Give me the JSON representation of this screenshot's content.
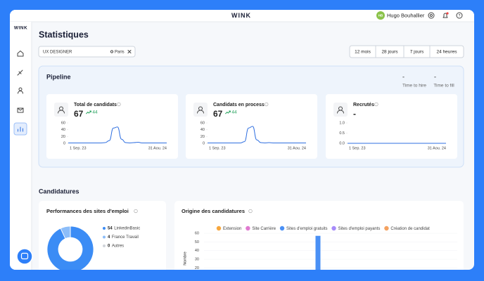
{
  "header": {
    "logo": "WINK",
    "user": {
      "initials": "HB",
      "name": "Hugo Bouhallier"
    }
  },
  "sidebar": {
    "logo": "WINK"
  },
  "page_title": "Statistiques",
  "search": {
    "query": "UX DESIGNER",
    "location": "Paris"
  },
  "time_filters": [
    "12 mois",
    "28 jours",
    "7 jours",
    "24 heures"
  ],
  "pipeline": {
    "title": "Pipeline",
    "metrics": [
      {
        "value": "-",
        "label": "Time to hire"
      },
      {
        "value": "-",
        "label": "Time to fill"
      }
    ],
    "cards": [
      {
        "title": "Total de candidats",
        "value": 67,
        "delta": 44,
        "chart": {
          "type": "line",
          "color": "#2f6fe0",
          "values": [
            1,
            1,
            1,
            1,
            1,
            1,
            1,
            1,
            1,
            2,
            8,
            45,
            48,
            12,
            2,
            1,
            2,
            3,
            1,
            1,
            1,
            1,
            1,
            1,
            1
          ],
          "ylim": [
            0,
            60
          ],
          "yticks": [
            0,
            20,
            40,
            60
          ],
          "x_labels": [
            "1 Sep. 23",
            "31 Aou. 24"
          ]
        }
      },
      {
        "title": "Candidats en process",
        "value": 67,
        "delta": 44,
        "chart": {
          "type": "line",
          "color": "#2f6fe0",
          "values": [
            1,
            1,
            1,
            1,
            1,
            1,
            1,
            1,
            1,
            5,
            45,
            50,
            10,
            2,
            1,
            2,
            1,
            1,
            1,
            1,
            1,
            1,
            1,
            1,
            1
          ],
          "ylim": [
            0,
            60
          ],
          "yticks": [
            0,
            20,
            40,
            60
          ],
          "x_labels": [
            "1 Sep. 23",
            "31 Aou. 24"
          ]
        }
      },
      {
        "title": "Recrutés",
        "value": "-",
        "chart": {
          "type": "line",
          "color": "#2f6fe0",
          "values": [
            0,
            0
          ],
          "ylim": [
            0,
            1
          ],
          "yticks": [
            {
              "value": 0,
              "label": "0.0"
            },
            0.5,
            {
              "value": 1,
              "label": "1.0"
            }
          ],
          "x_labels": [
            "1 Sep. 23",
            "31 Aou. 24"
          ]
        }
      }
    ]
  },
  "candidatures": {
    "title": "Candidatures",
    "performance": {
      "title": "Performances des sites d'emploi",
      "chart": {
        "type": "donut",
        "categories": [
          "LinkedinBasic",
          "France Travail",
          "Autres"
        ],
        "values": [
          54,
          4,
          0
        ],
        "colors": [
          "#3b8cf5",
          "#8cbdf9",
          "#d0d4da"
        ]
      }
    },
    "origin": {
      "title": "Origine des candidatures",
      "chart": {
        "type": "bar",
        "y_label": "Nombre",
        "ylim": [
          0,
          60
        ],
        "yticks": [
          20,
          30,
          40,
          50,
          60
        ],
        "grid": true,
        "categories": [
          null,
          null,
          null,
          null,
          null,
          null,
          null,
          null,
          null,
          null
        ],
        "series": [
          {
            "name": "Extension",
            "color": "#f7a73e",
            "values": [
              0,
              0,
              0,
              0,
              0,
              0,
              0,
              0,
              0,
              0
            ]
          },
          {
            "name": "Site Carrière",
            "color": "#e07ad0",
            "values": [
              0,
              0,
              0,
              0,
              0,
              0,
              0,
              0,
              0,
              0
            ]
          },
          {
            "name": "Sites d'emploi gratuits",
            "color": "#4a90f5",
            "values": [
              0,
              0,
              0,
              0,
              57,
              0,
              0,
              0,
              0,
              0
            ]
          },
          {
            "name": "Sites d'emploi payants",
            "color": "#a78bfa",
            "values": [
              0,
              0,
              0,
              0,
              0,
              0,
              0,
              0,
              0,
              0
            ]
          },
          {
            "name": "Création de candidat",
            "color": "#f4a261",
            "values": [
              0,
              0,
              0,
              0,
              0,
              0,
              0,
              0,
              0,
              0
            ]
          }
        ]
      }
    }
  }
}
